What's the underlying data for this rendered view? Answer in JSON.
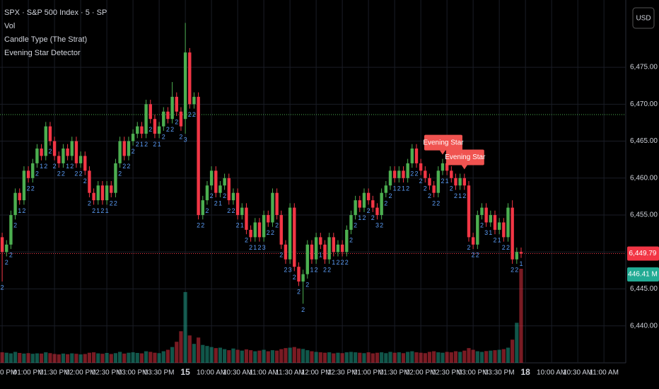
{
  "chart_data": {
    "type": "candlestick",
    "title": "SPX · S&P 500 Index · 5 · SP",
    "indicators": [
      "Vol",
      "Candle Type (The Strat)",
      "Evening Star Detector"
    ],
    "currency": "USD",
    "open": [
      6452,
      6450,
      6451,
      6455,
      6458,
      6457,
      6461,
      6460,
      6462,
      6464,
      6463,
      6467,
      6465,
      6463,
      6462,
      6464,
      6463,
      6465,
      6462,
      6463,
      6461,
      6458,
      6457,
      6459,
      6457,
      6459,
      6458,
      6462,
      6465,
      6463,
      6465,
      6466,
      6467,
      6466,
      6470,
      6468,
      6466,
      6467,
      6469,
      6468,
      6471,
      6469,
      6468,
      6477,
      6470,
      6471,
      6455,
      6457,
      6459,
      6461,
      6458,
      6459,
      6460,
      6457,
      6458,
      6455,
      6456,
      6453,
      6452,
      6454,
      6452,
      6455,
      6454,
      6458,
      6455,
      6451,
      6449,
      6456,
      6448,
      6446,
      6447,
      6451,
      6449,
      6452,
      6451,
      6449,
      6452,
      6450,
      6451,
      6450,
      6453,
      6455,
      6457,
      6456,
      6458,
      6457,
      6456,
      6455,
      6458,
      6459,
      6461,
      6460,
      6461,
      6460,
      6462,
      6464,
      6462,
      6461,
      6460,
      6459,
      6458,
      6461,
      6462,
      6461,
      6460,
      6459,
      6460,
      6459,
      6452,
      6451,
      6455,
      6456,
      6454,
      6455,
      6453,
      6454,
      6452,
      6456,
      6449,
      6450
    ],
    "high": [
      6452.6,
      6451.6,
      6455.6,
      6458.6,
      6458.6,
      6461.6,
      6461.6,
      6462.6,
      6464.6,
      6464.6,
      6467.6,
      6467.6,
      6465.6,
      6463.6,
      6464.6,
      6464.6,
      6465.6,
      6465.6,
      6463.6,
      6463.6,
      6461.6,
      6458.6,
      6459.6,
      6459.6,
      6459.6,
      6459.6,
      6462.6,
      6465.6,
      6465.6,
      6465.6,
      6466.6,
      6467.6,
      6467.6,
      6470.6,
      6470.6,
      6468.6,
      6467.6,
      6469.6,
      6469.6,
      6473,
      6471.6,
      6469.6,
      6481,
      6477.6,
      6471.6,
      6471.6,
      6457.6,
      6459.6,
      6461.6,
      6461.6,
      6459.6,
      6460.6,
      6460.6,
      6458.6,
      6458.6,
      6456.6,
      6456.6,
      6453.6,
      6454.6,
      6454.6,
      6455.6,
      6455.6,
      6458.6,
      6458.6,
      6455.6,
      6451.6,
      6456.6,
      6456.6,
      6448.6,
      6447.6,
      6451.6,
      6451.6,
      6452.6,
      6452.6,
      6451.6,
      6452.6,
      6452.6,
      6451.6,
      6451.6,
      6453.6,
      6455.6,
      6457.6,
      6457.6,
      6458.6,
      6458.6,
      6457.6,
      6456.6,
      6458.6,
      6459.6,
      6461.6,
      6461.6,
      6461.6,
      6461.6,
      6462.6,
      6464.6,
      6464.6,
      6462.6,
      6461.6,
      6460.6,
      6459.6,
      6461.6,
      6462.6,
      6462.6,
      6461.6,
      6460.6,
      6460.6,
      6460.6,
      6459.6,
      6452.6,
      6455.6,
      6456.6,
      6456.6,
      6455.6,
      6455.6,
      6454.6,
      6454.6,
      6456.6,
      6457,
      6450.6,
      6450.6
    ],
    "low": [
      6446,
      6449.4,
      6450.4,
      6454.4,
      6456.4,
      6456.4,
      6459.4,
      6459.4,
      6461.4,
      6462.4,
      6462.4,
      6464.4,
      6462.4,
      6461.4,
      6461.4,
      6462.4,
      6462.4,
      6461.4,
      6461.4,
      6460.4,
      6457.4,
      6456.4,
      6456.4,
      6456.4,
      6456.4,
      6457.4,
      6457.4,
      6461.4,
      6462.4,
      6462.4,
      6464.4,
      6465.4,
      6465.4,
      6465.4,
      6467.4,
      6465.4,
      6465.4,
      6466.4,
      6467.4,
      6467.4,
      6468.4,
      6466.4,
      6466,
      6469.4,
      6469.4,
      6454.4,
      6454.4,
      6456.4,
      6458.4,
      6457.4,
      6457.4,
      6458.4,
      6456.4,
      6456.4,
      6454.4,
      6454.4,
      6452.4,
      6451.4,
      6451.4,
      6451.4,
      6451.4,
      6453.4,
      6453.4,
      6454.4,
      6450.4,
      6448.4,
      6448.4,
      6447.4,
      6445.4,
      6443,
      6446.4,
      6448.4,
      6448.4,
      6450.4,
      6448.4,
      6448.4,
      6449.4,
      6449.4,
      6449.4,
      6449.4,
      6452.4,
      6454.4,
      6455.4,
      6455.4,
      6456.4,
      6455.4,
      6454.4,
      6454.4,
      6457.4,
      6458.4,
      6459.4,
      6459.4,
      6459.4,
      6459.4,
      6461.4,
      6461.4,
      6460.4,
      6459.4,
      6458.4,
      6457.4,
      6457.4,
      6460.4,
      6460.4,
      6459.4,
      6458.4,
      6458.4,
      6458.4,
      6451.4,
      6450.4,
      6450.4,
      6454.4,
      6453.4,
      6453.4,
      6452.4,
      6452.4,
      6451.4,
      6451.4,
      6448.4,
      6448.4,
      6449.2
    ],
    "close": [
      6450,
      6451,
      6455,
      6458,
      6457,
      6461,
      6460,
      6462,
      6464,
      6463,
      6467,
      6465,
      6463,
      6462,
      6464,
      6463,
      6465,
      6462,
      6463,
      6461,
      6458,
      6457,
      6459,
      6457,
      6459,
      6458,
      6462,
      6465,
      6463,
      6465,
      6466,
      6467,
      6466,
      6470,
      6468,
      6466,
      6467,
      6469,
      6468,
      6471,
      6469,
      6467,
      6477,
      6470,
      6471,
      6455,
      6457,
      6459,
      6461,
      6458,
      6459,
      6460,
      6457,
      6458,
      6455,
      6456,
      6453,
      6452,
      6454,
      6452,
      6455,
      6454,
      6458,
      6455,
      6451,
      6449,
      6456,
      6448,
      6446,
      6447,
      6451,
      6449,
      6452,
      6451,
      6449,
      6452,
      6450,
      6451,
      6450,
      6453,
      6455,
      6457,
      6456,
      6458,
      6457,
      6456,
      6455,
      6458,
      6459,
      6461,
      6460,
      6461,
      6460,
      6462,
      6464,
      6462,
      6461,
      6460,
      6459,
      6458,
      6461,
      6462,
      6461,
      6460,
      6459,
      6460,
      6459,
      6452,
      6451,
      6455,
      6456,
      6454,
      6455,
      6453,
      6454,
      6452,
      6456,
      6449,
      6450,
      6449.79
    ],
    "volume": [
      50,
      48,
      45,
      52,
      47,
      44,
      46,
      43,
      45,
      44,
      50,
      46,
      42,
      40,
      44,
      41,
      45,
      43,
      40,
      42,
      48,
      50,
      45,
      43,
      47,
      42,
      46,
      52,
      44,
      48,
      50,
      47,
      45,
      55,
      52,
      48,
      46,
      55,
      62,
      75,
      100,
      150,
      336,
      130,
      90,
      120,
      85,
      80,
      75,
      70,
      72,
      65,
      60,
      68,
      62,
      58,
      64,
      60,
      55,
      58,
      62,
      55,
      60,
      58,
      65,
      70,
      72,
      75,
      68,
      66,
      60,
      55,
      52,
      50,
      48,
      50,
      45,
      48,
      46,
      50,
      52,
      50,
      48,
      46,
      50,
      45,
      48,
      50,
      46,
      52,
      48,
      50,
      46,
      52,
      55,
      50,
      48,
      46,
      52,
      55,
      50,
      48,
      52,
      50,
      55,
      52,
      58,
      70,
      62,
      55,
      52,
      56,
      58,
      60,
      62,
      65,
      72,
      110,
      190,
      446.41
    ],
    "strat": [
      "2",
      "2",
      "2",
      "2",
      "1",
      "2",
      "2",
      "2",
      "2",
      "1",
      "2",
      "2",
      "2",
      "2",
      "2",
      "1",
      "2",
      "2",
      "2",
      "2",
      "2",
      "2",
      "1",
      "2",
      "1",
      "2",
      "2",
      "2",
      "2",
      "2",
      "2",
      "2",
      "1",
      "2",
      "2",
      "2",
      "1",
      "2",
      "2",
      "2",
      "2",
      "2",
      "3",
      "2",
      "2",
      "2",
      "2",
      "2",
      "2",
      "2",
      "1",
      "2",
      "2",
      "2",
      "2",
      "1",
      "2",
      "2",
      "1",
      "2",
      "3",
      "2",
      "2",
      "2",
      "2",
      "2",
      "3",
      "2",
      "2",
      "2",
      "2",
      "1",
      "2",
      "1",
      "2",
      "2",
      "1",
      "2",
      "2",
      "2",
      "2",
      "2",
      "1",
      "2",
      "2",
      "2",
      "3",
      "2",
      "2",
      "2",
      "1",
      "2",
      "1",
      "2",
      "2",
      "2",
      "2",
      "2",
      "2",
      "2",
      "2",
      "2",
      "1",
      "2",
      "2",
      "1",
      "2",
      "2",
      "2",
      "2",
      "2",
      "3",
      "1",
      "2",
      "1",
      "2",
      "2",
      "2",
      "2",
      "1"
    ],
    "up_color": "#4caf50",
    "down_color": "#f23645",
    "strat_color": "#5b9cf6",
    "annotations": [
      {
        "text": "Evening Star",
        "index": 101
      },
      {
        "text": "Evening Star",
        "index": 106
      }
    ],
    "levels": [
      {
        "value": 6468.6,
        "color": "#4caf50"
      },
      {
        "value": 6449.79,
        "color": "#f23645"
      }
    ],
    "last_close_label": "6,449.79",
    "last_volume_label": "446.41 M",
    "xlim": [
      -0.5,
      143
    ],
    "xticks": [
      {
        "value": 0,
        "label": "0 PM"
      },
      {
        "value": 6,
        "label": "01:00 PM"
      },
      {
        "value": 12,
        "label": "01:30 PM"
      },
      {
        "value": 18,
        "label": "02:00 PM"
      },
      {
        "value": 24,
        "label": "02:30 PM"
      },
      {
        "value": 30,
        "label": "03:00 PM"
      },
      {
        "value": 36,
        "label": "03:30 PM"
      },
      {
        "value": 42,
        "label": "15"
      },
      {
        "value": 48,
        "label": "10:00 AM"
      },
      {
        "value": 54,
        "label": "10:30 AM"
      },
      {
        "value": 60,
        "label": "11:00 AM"
      },
      {
        "value": 66,
        "label": "11:30 AM"
      },
      {
        "value": 72,
        "label": "12:00 PM"
      },
      {
        "value": 78,
        "label": "12:30 PM"
      },
      {
        "value": 84,
        "label": "01:00 PM"
      },
      {
        "value": 90,
        "label": "01:30 PM"
      },
      {
        "value": 96,
        "label": "02:00 PM"
      },
      {
        "value": 102,
        "label": "02:30 PM"
      },
      {
        "value": 108,
        "label": "03:00 PM"
      },
      {
        "value": 114,
        "label": "03:30 PM"
      },
      {
        "value": 120,
        "label": "18"
      },
      {
        "value": 126,
        "label": "10:00 AM"
      },
      {
        "value": 132,
        "label": "10:30 AM"
      },
      {
        "value": 138,
        "label": "11:00 AM"
      }
    ],
    "ylim": [
      6435,
      6484.1
    ],
    "yticks": [
      {
        "value": 6440,
        "label": "6,440.00"
      },
      {
        "value": 6445,
        "label": "6,445.00"
      },
      {
        "value": 6450,
        "label": "6,450.00"
      },
      {
        "value": 6455,
        "label": "6,455.00"
      },
      {
        "value": 6460,
        "label": "6,460.00"
      },
      {
        "value": 6465,
        "label": "6,465.00"
      },
      {
        "value": 6470,
        "label": "6,470.00"
      },
      {
        "value": 6475,
        "label": "6,475.00"
      }
    ],
    "volume_ylim": [
      0,
      1722
    ],
    "grid": true
  }
}
